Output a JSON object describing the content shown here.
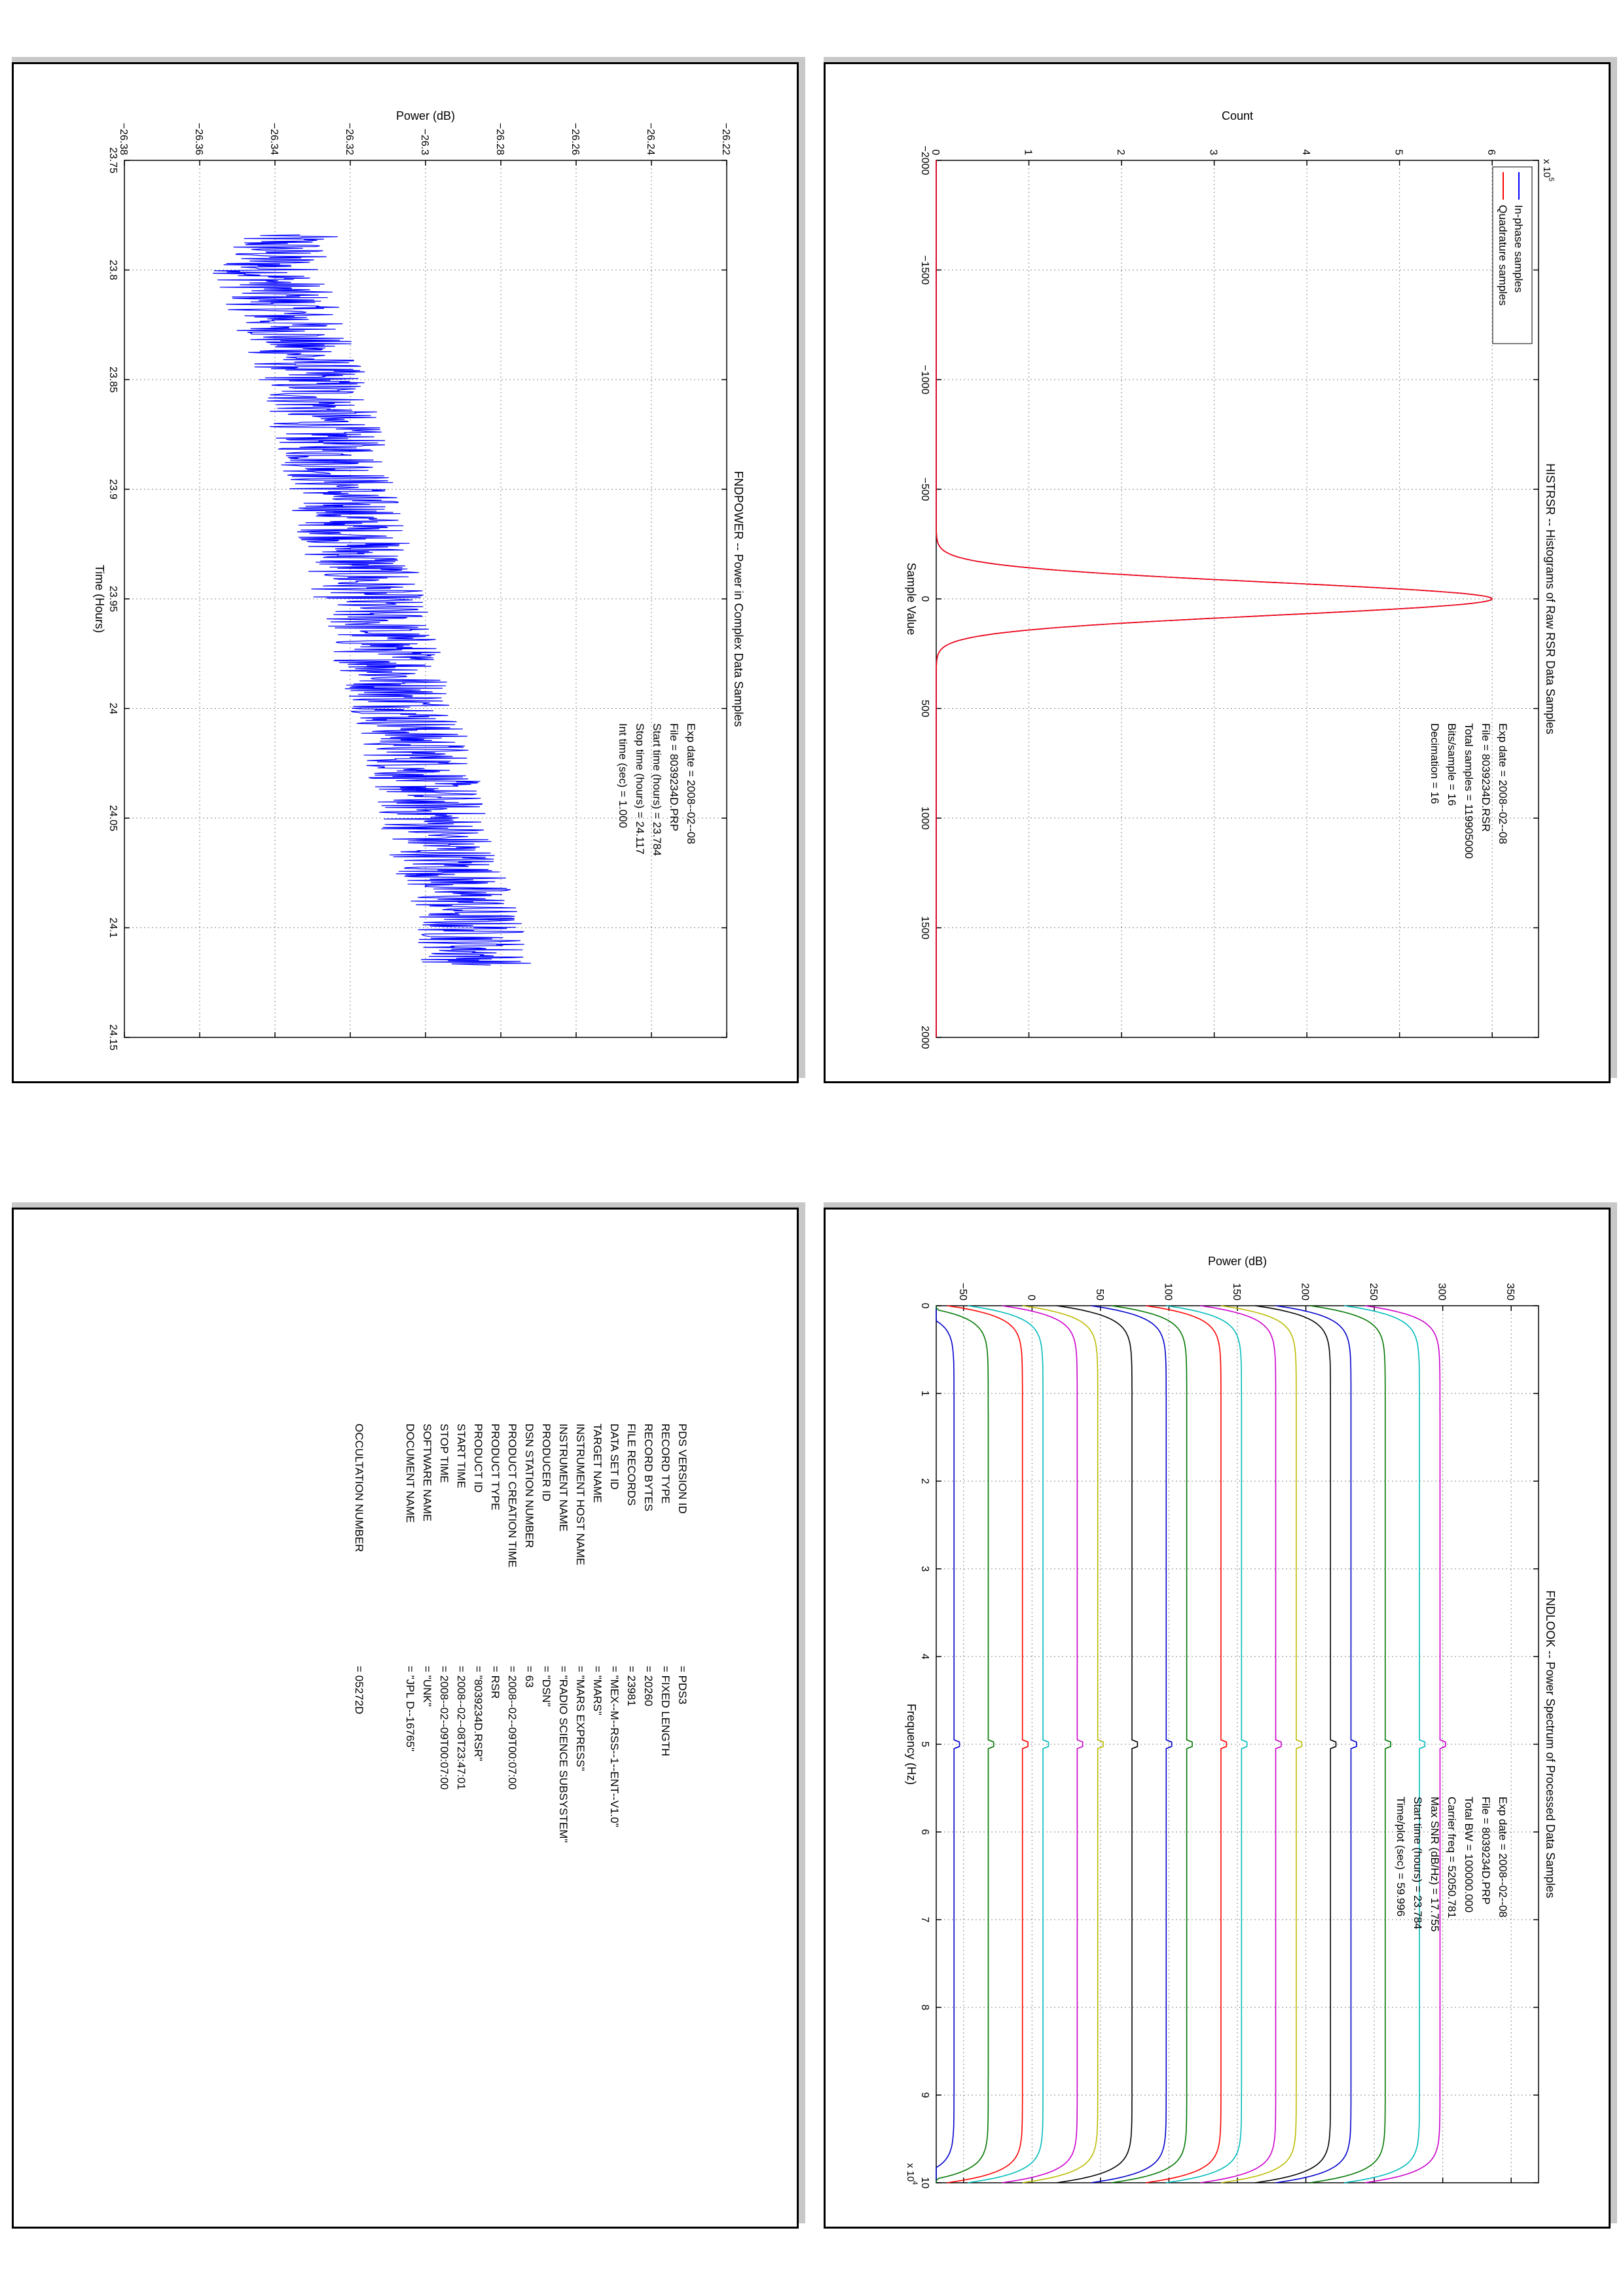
{
  "panels": {
    "histogram": {
      "title": "HISTRSR -- Histograms of Raw RSR Data Samples",
      "xlabel": "Sample Value",
      "ylabel": "Count",
      "multiplier": "x 10",
      "multiplier_exp": "5",
      "info": [
        "Exp date = 2008--02--08",
        "File = 8039234D.RSR",
        "Total samples = 119905000",
        "Bits/sample   =        16",
        "Decimation    =        16"
      ],
      "legend": [
        "In-phase samples",
        "Quadrature samples"
      ]
    },
    "power": {
      "title": "FNDPOWER -- Power in Complex Data Samples",
      "xlabel": "Time (Hours)",
      "ylabel": "Power (dB)",
      "info": [
        "Exp date = 2008--02--08",
        "File = 8039234D.PRP",
        "Start time (hours) = 23.784",
        "Stop time (hours) = 24.117",
        "Int time (sec) =      1.000"
      ]
    },
    "spectrum": {
      "title": "FNDLOOK -- Power Spectrum of Processed Data Samples",
      "xlabel": "Frequency (Hz)",
      "ylabel": "Power (dB)",
      "multiplier": "x 10",
      "multiplier_exp": "4",
      "info": [
        "Exp date = 2008--02--08",
        "File = 8039234D.PRP",
        "Total BW =      100000.000",
        "Carrier freq =    52050.781",
        "Max SNR (dB/Hz) =      17.755",
        "Start time (hours) =    23.784",
        "Time/plot (sec) =      59.996"
      ]
    },
    "label": {
      "rows": [
        [
          "PDS VERSION ID",
          "= PDS3"
        ],
        [
          "RECORD TYPE",
          "= FIXED LENGTH"
        ],
        [
          "RECORD BYTES",
          "= 20260"
        ],
        [
          "FILE RECORDS",
          "= 23981"
        ],
        [
          "DATA SET ID",
          "= \"MEX--M--RSS--1--ENT--V1.0\""
        ],
        [
          "TARGET NAME",
          "= \"MARS\""
        ],
        [
          "INSTRUMENT HOST NAME",
          "= \"MARS EXPRESS\""
        ],
        [
          "INSTRUMENT NAME",
          "= \"RADIO SCIENCE SUBSYSTEM\""
        ],
        [
          "PRODUCER ID",
          "= \"DSN\""
        ],
        [
          "DSN STATION NUMBER",
          "= 63"
        ],
        [
          "PRODUCT CREATION TIME",
          "= 2008--02--09T00:07:00"
        ],
        [
          "PRODUCT TYPE",
          "= RSR"
        ],
        [
          "PRODUCT ID",
          "= \"8039234D.RSR\""
        ],
        [
          "START TIME",
          "= 2008--02--08T23:47:01"
        ],
        [
          "STOP TIME",
          "= 2008--02--09T00:07:00"
        ],
        [
          "SOFTWARE NAME",
          "= \"UNK\""
        ],
        [
          "DOCUMENT NAME",
          "= \"JPL D--16765\""
        ]
      ],
      "occultation": [
        "OCCULTATION NUMBER",
        "= 05272D"
      ]
    }
  },
  "chart_data": [
    {
      "type": "line",
      "title": "HISTRSR -- Histograms of Raw RSR Data Samples",
      "xlabel": "Sample Value",
      "ylabel": "Count",
      "xlim": [
        -2000,
        2000
      ],
      "ylim": [
        0,
        6.5
      ],
      "y_scale_multiplier": 100000,
      "xticks": [
        -2000,
        -1500,
        -1000,
        -500,
        0,
        500,
        1000,
        1500,
        2000
      ],
      "yticks": [
        0,
        1,
        2,
        3,
        4,
        5,
        6
      ],
      "grid": true,
      "legend_position": "top-right",
      "series": [
        {
          "name": "In-phase samples",
          "color": "#0000ff",
          "peak_x": 0,
          "peak_y": 6.0,
          "sigma": 75
        },
        {
          "name": "Quadrature samples",
          "color": "#ff0000",
          "peak_x": 0,
          "peak_y": 6.0,
          "sigma": 75
        }
      ]
    },
    {
      "type": "line",
      "title": "FNDPOWER -- Power in Complex Data Samples",
      "xlabel": "Time (Hours)",
      "ylabel": "Power (dB)",
      "xlim": [
        23.75,
        24.15
      ],
      "ylim": [
        -26.38,
        -26.22
      ],
      "xticks": [
        23.75,
        23.8,
        23.85,
        23.9,
        23.95,
        24,
        24.05,
        24.1,
        24.15
      ],
      "yticks": [
        -26.38,
        -26.36,
        -26.34,
        -26.32,
        -26.3,
        -26.28,
        -26.26,
        -26.24,
        -26.22
      ],
      "grid": true,
      "series": [
        {
          "color": "#0000ff",
          "x_start": 23.784,
          "x_end": 24.117,
          "trend_x": [
            23.784,
            23.8,
            23.85,
            23.9,
            23.95,
            24.0,
            24.05,
            24.1,
            24.117
          ],
          "trend_y": [
            -26.338,
            -26.342,
            -26.33,
            -26.322,
            -26.315,
            -26.305,
            -26.298,
            -26.288,
            -26.286
          ],
          "noise_amplitude": 0.015
        }
      ]
    },
    {
      "type": "line",
      "title": "FNDLOOK -- Power Spectrum of Processed Data Samples",
      "xlabel": "Frequency (Hz)",
      "ylabel": "Power (dB)",
      "xlim": [
        0,
        10
      ],
      "ylim": [
        -70,
        370
      ],
      "x_scale_multiplier": 10000,
      "xticks": [
        0,
        1,
        2,
        3,
        4,
        5,
        6,
        7,
        8,
        9,
        10
      ],
      "yticks": [
        -50,
        0,
        50,
        100,
        150,
        200,
        250,
        300,
        350
      ],
      "grid": true,
      "series": [
        {
          "level": -57,
          "color": "#0000cc"
        },
        {
          "level": -32,
          "color": "#007700"
        },
        {
          "level": -7,
          "color": "#ff0000"
        },
        {
          "level": 8,
          "color": "#00bbbb"
        },
        {
          "level": 33,
          "color": "#cc00cc"
        },
        {
          "level": 48,
          "color": "#bbbb00"
        },
        {
          "level": 73,
          "color": "#000000"
        },
        {
          "level": 98,
          "color": "#0000cc"
        },
        {
          "level": 113,
          "color": "#007700"
        },
        {
          "level": 138,
          "color": "#ff0000"
        },
        {
          "level": 153,
          "color": "#00bbbb"
        },
        {
          "level": 178,
          "color": "#cc00cc"
        },
        {
          "level": 193,
          "color": "#bbbb00"
        },
        {
          "level": 218,
          "color": "#000000"
        },
        {
          "level": 233,
          "color": "#0000cc"
        },
        {
          "level": 258,
          "color": "#007700"
        },
        {
          "level": 283,
          "color": "#00bbbb"
        },
        {
          "level": 298,
          "color": "#cc00cc"
        }
      ]
    }
  ]
}
